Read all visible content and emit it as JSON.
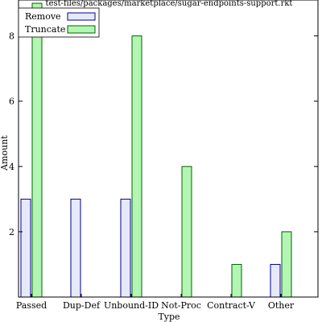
{
  "chart_data": {
    "type": "bar",
    "title": "test-files/packages/marketplace/sugar-endpoints-support.rkt",
    "xlabel": "Type",
    "ylabel": "Amount",
    "categories": [
      "Passed",
      "Dup-Def",
      "Unbound-ID",
      "Not-Proc",
      "Contract-V",
      "Other"
    ],
    "series": [
      {
        "name": "Remove",
        "values": [
          3,
          3,
          3,
          0,
          0,
          1
        ],
        "color": "#e6e9fa",
        "stroke": "#00008b"
      },
      {
        "name": "Truncate",
        "values": [
          9,
          0,
          8,
          4,
          1,
          2
        ],
        "color": "#b3f5b3",
        "stroke": "#006400"
      }
    ],
    "yticks": [
      2,
      4,
      6,
      8
    ],
    "ylim": [
      0,
      9.1
    ],
    "grid": false,
    "legend_position": "top-left"
  }
}
